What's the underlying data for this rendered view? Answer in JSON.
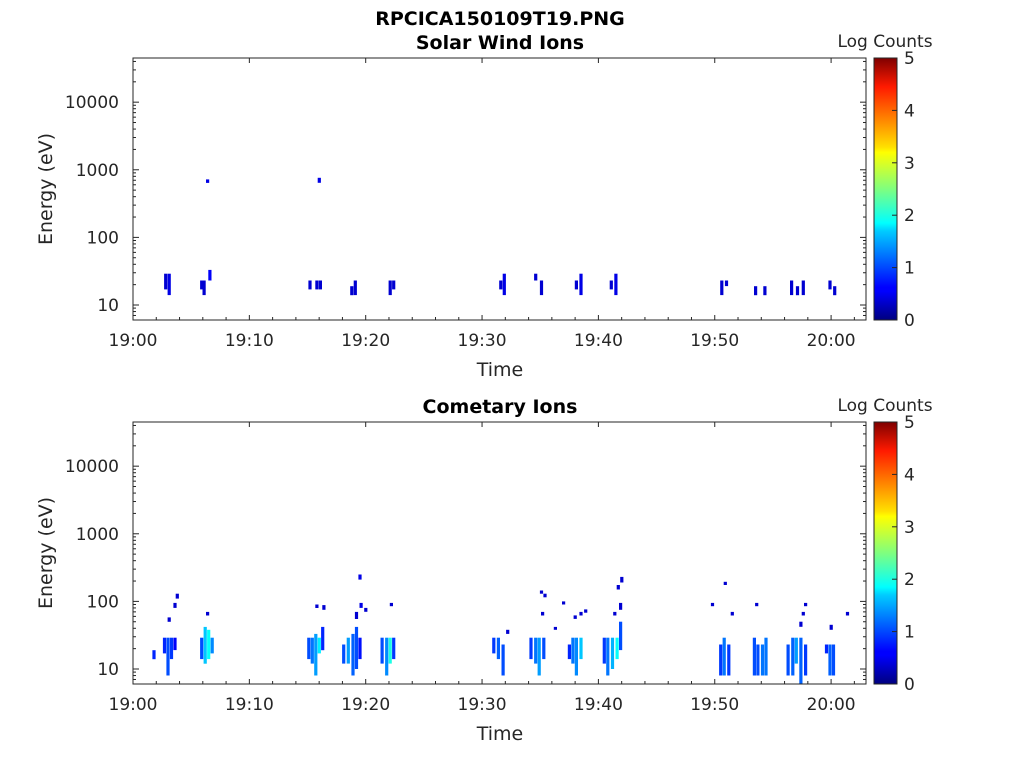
{
  "figure": {
    "title": "RPCICA150109T19.PNG"
  },
  "chart_data": [
    {
      "type": "heatmap",
      "title": "Solar Wind Ions",
      "xlabel": "Time",
      "ylabel": "Energy (eV)",
      "x_ticks": [
        "19:00",
        "19:10",
        "19:20",
        "19:30",
        "19:40",
        "19:50",
        "20:00"
      ],
      "x_range_minutes": [
        0,
        63
      ],
      "y_scale": "log",
      "y_ticks": [
        10,
        100,
        1000,
        10000
      ],
      "y_range": [
        6,
        45000
      ],
      "colorbar": {
        "label": "Log Counts",
        "range": [
          0,
          5
        ],
        "ticks": [
          "0",
          "1",
          "2",
          "3",
          "4",
          "5"
        ],
        "colormap": "jet"
      },
      "cells": [
        {
          "t": 2.8,
          "e0": 17,
          "e1": 29,
          "c": 0.4
        },
        {
          "t": 3.1,
          "e0": 14,
          "e1": 29,
          "c": 0.5
        },
        {
          "t": 5.9,
          "e0": 17,
          "e1": 23,
          "c": 0.4
        },
        {
          "t": 6.1,
          "e0": 14,
          "e1": 23,
          "c": 0.4
        },
        {
          "t": 6.6,
          "e0": 23,
          "e1": 33,
          "c": 0.6
        },
        {
          "t": 6.4,
          "e0": 640,
          "e1": 720,
          "c": 0.5
        },
        {
          "t": 15.2,
          "e0": 17,
          "e1": 23,
          "c": 0.4
        },
        {
          "t": 15.8,
          "e0": 17,
          "e1": 23,
          "c": 0.4
        },
        {
          "t": 16.1,
          "e0": 17,
          "e1": 23,
          "c": 0.4
        },
        {
          "t": 16.0,
          "e0": 640,
          "e1": 760,
          "c": 0.5
        },
        {
          "t": 18.8,
          "e0": 14,
          "e1": 19,
          "c": 0.4
        },
        {
          "t": 19.1,
          "e0": 14,
          "e1": 23,
          "c": 0.4
        },
        {
          "t": 22.1,
          "e0": 14,
          "e1": 23,
          "c": 0.4
        },
        {
          "t": 22.4,
          "e0": 17,
          "e1": 23,
          "c": 0.4
        },
        {
          "t": 31.6,
          "e0": 17,
          "e1": 23,
          "c": 0.4
        },
        {
          "t": 31.9,
          "e0": 14,
          "e1": 29,
          "c": 0.5
        },
        {
          "t": 34.6,
          "e0": 23,
          "e1": 29,
          "c": 0.4
        },
        {
          "t": 35.1,
          "e0": 14,
          "e1": 23,
          "c": 0.4
        },
        {
          "t": 38.1,
          "e0": 17,
          "e1": 23,
          "c": 0.4
        },
        {
          "t": 38.5,
          "e0": 14,
          "e1": 29,
          "c": 0.5
        },
        {
          "t": 41.1,
          "e0": 17,
          "e1": 23,
          "c": 0.4
        },
        {
          "t": 41.5,
          "e0": 14,
          "e1": 29,
          "c": 0.5
        },
        {
          "t": 50.6,
          "e0": 14,
          "e1": 23,
          "c": 0.4
        },
        {
          "t": 51.0,
          "e0": 19,
          "e1": 23,
          "c": 0.4
        },
        {
          "t": 53.5,
          "e0": 14,
          "e1": 19,
          "c": 0.4
        },
        {
          "t": 54.3,
          "e0": 14,
          "e1": 19,
          "c": 0.4
        },
        {
          "t": 56.6,
          "e0": 14,
          "e1": 23,
          "c": 0.4
        },
        {
          "t": 57.1,
          "e0": 14,
          "e1": 19,
          "c": 0.4
        },
        {
          "t": 57.6,
          "e0": 14,
          "e1": 23,
          "c": 0.4
        },
        {
          "t": 59.9,
          "e0": 17,
          "e1": 23,
          "c": 0.4
        },
        {
          "t": 60.3,
          "e0": 14,
          "e1": 19,
          "c": 0.4
        }
      ]
    },
    {
      "type": "heatmap",
      "title": "Cometary Ions",
      "xlabel": "Time",
      "ylabel": "Energy (eV)",
      "x_ticks": [
        "19:00",
        "19:10",
        "19:20",
        "19:30",
        "19:40",
        "19:50",
        "20:00"
      ],
      "x_range_minutes": [
        0,
        63
      ],
      "y_scale": "log",
      "y_ticks": [
        10,
        100,
        1000,
        10000
      ],
      "y_range": [
        6,
        45000
      ],
      "colorbar": {
        "label": "Log Counts",
        "range": [
          0,
          5
        ],
        "ticks": [
          "0",
          "1",
          "2",
          "3",
          "4",
          "5"
        ],
        "colormap": "jet"
      },
      "cells": [
        {
          "t": 1.8,
          "e0": 14,
          "e1": 19,
          "c": 0.8
        },
        {
          "t": 2.7,
          "e0": 17,
          "e1": 29,
          "c": 0.8
        },
        {
          "t": 3.0,
          "e0": 8,
          "e1": 29,
          "c": 1.0
        },
        {
          "t": 3.3,
          "e0": 14,
          "e1": 29,
          "c": 0.9
        },
        {
          "t": 3.6,
          "e0": 19,
          "e1": 29,
          "c": 0.6
        },
        {
          "t": 3.1,
          "e0": 50,
          "e1": 58,
          "c": 0.4
        },
        {
          "t": 3.6,
          "e0": 80,
          "e1": 95,
          "c": 0.4
        },
        {
          "t": 3.8,
          "e0": 110,
          "e1": 130,
          "c": 0.4
        },
        {
          "t": 5.9,
          "e0": 14,
          "e1": 29,
          "c": 1.0
        },
        {
          "t": 6.2,
          "e0": 12,
          "e1": 42,
          "c": 1.6
        },
        {
          "t": 6.5,
          "e0": 14,
          "e1": 38,
          "c": 1.9
        },
        {
          "t": 6.8,
          "e0": 17,
          "e1": 29,
          "c": 1.3
        },
        {
          "t": 6.4,
          "e0": 62,
          "e1": 70,
          "c": 0.4
        },
        {
          "t": 15.1,
          "e0": 14,
          "e1": 29,
          "c": 1.0
        },
        {
          "t": 15.4,
          "e0": 12,
          "e1": 29,
          "c": 1.2
        },
        {
          "t": 15.7,
          "e0": 8,
          "e1": 33,
          "c": 1.4
        },
        {
          "t": 16.0,
          "e0": 17,
          "e1": 29,
          "c": 1.8
        },
        {
          "t": 16.3,
          "e0": 19,
          "e1": 42,
          "c": 0.8
        },
        {
          "t": 15.8,
          "e0": 80,
          "e1": 90,
          "c": 0.4
        },
        {
          "t": 16.4,
          "e0": 75,
          "e1": 88,
          "c": 0.4
        },
        {
          "t": 18.1,
          "e0": 12,
          "e1": 23,
          "c": 1.0
        },
        {
          "t": 18.5,
          "e0": 12,
          "e1": 29,
          "c": 1.4
        },
        {
          "t": 18.9,
          "e0": 8,
          "e1": 33,
          "c": 1.1
        },
        {
          "t": 19.2,
          "e0": 10,
          "e1": 42,
          "c": 1.0
        },
        {
          "t": 19.5,
          "e0": 14,
          "e1": 29,
          "c": 0.7
        },
        {
          "t": 19.2,
          "e0": 55,
          "e1": 70,
          "c": 0.4
        },
        {
          "t": 19.6,
          "e0": 80,
          "e1": 95,
          "c": 0.5
        },
        {
          "t": 19.5,
          "e0": 210,
          "e1": 250,
          "c": 0.5
        },
        {
          "t": 20.0,
          "e0": 70,
          "e1": 80,
          "c": 0.4
        },
        {
          "t": 21.4,
          "e0": 12,
          "e1": 29,
          "c": 1.0
        },
        {
          "t": 21.8,
          "e0": 8,
          "e1": 29,
          "c": 1.3
        },
        {
          "t": 22.1,
          "e0": 12,
          "e1": 29,
          "c": 2.0
        },
        {
          "t": 22.4,
          "e0": 14,
          "e1": 29,
          "c": 0.9
        },
        {
          "t": 22.2,
          "e0": 85,
          "e1": 95,
          "c": 0.4
        },
        {
          "t": 31.0,
          "e0": 17,
          "e1": 29,
          "c": 0.9
        },
        {
          "t": 31.4,
          "e0": 14,
          "e1": 29,
          "c": 1.1
        },
        {
          "t": 31.8,
          "e0": 8,
          "e1": 23,
          "c": 1.0
        },
        {
          "t": 32.2,
          "e0": 33,
          "e1": 38,
          "c": 0.4
        },
        {
          "t": 34.2,
          "e0": 14,
          "e1": 29,
          "c": 0.9
        },
        {
          "t": 34.6,
          "e0": 12,
          "e1": 29,
          "c": 1.2
        },
        {
          "t": 34.9,
          "e0": 8,
          "e1": 29,
          "c": 1.4
        },
        {
          "t": 35.3,
          "e0": 14,
          "e1": 29,
          "c": 1.0
        },
        {
          "t": 35.1,
          "e0": 130,
          "e1": 145,
          "c": 0.4
        },
        {
          "t": 35.4,
          "e0": 115,
          "e1": 130,
          "c": 0.4
        },
        {
          "t": 35.2,
          "e0": 62,
          "e1": 70,
          "c": 0.4
        },
        {
          "t": 36.3,
          "e0": 38,
          "e1": 42,
          "c": 0.4
        },
        {
          "t": 37.0,
          "e0": 90,
          "e1": 100,
          "c": 0.4
        },
        {
          "t": 37.5,
          "e0": 14,
          "e1": 23,
          "c": 0.8
        },
        {
          "t": 37.8,
          "e0": 12,
          "e1": 29,
          "c": 1.2
        },
        {
          "t": 38.1,
          "e0": 8,
          "e1": 29,
          "c": 1.3
        },
        {
          "t": 38.5,
          "e0": 14,
          "e1": 29,
          "c": 1.6
        },
        {
          "t": 38.0,
          "e0": 55,
          "e1": 62,
          "c": 0.4
        },
        {
          "t": 38.5,
          "e0": 62,
          "e1": 70,
          "c": 0.4
        },
        {
          "t": 38.9,
          "e0": 68,
          "e1": 76,
          "c": 0.4
        },
        {
          "t": 40.5,
          "e0": 12,
          "e1": 29,
          "c": 0.9
        },
        {
          "t": 40.8,
          "e0": 8,
          "e1": 29,
          "c": 1.2
        },
        {
          "t": 41.2,
          "e0": 10,
          "e1": 29,
          "c": 1.5
        },
        {
          "t": 41.6,
          "e0": 14,
          "e1": 29,
          "c": 1.9
        },
        {
          "t": 41.9,
          "e0": 19,
          "e1": 50,
          "c": 1.0
        },
        {
          "t": 41.4,
          "e0": 62,
          "e1": 70,
          "c": 0.4
        },
        {
          "t": 41.7,
          "e0": 150,
          "e1": 175,
          "c": 0.4
        },
        {
          "t": 42.0,
          "e0": 190,
          "e1": 230,
          "c": 0.4
        },
        {
          "t": 41.9,
          "e0": 75,
          "e1": 95,
          "c": 0.4
        },
        {
          "t": 49.8,
          "e0": 85,
          "e1": 95,
          "c": 0.4
        },
        {
          "t": 50.9,
          "e0": 175,
          "e1": 195,
          "c": 0.4
        },
        {
          "t": 51.5,
          "e0": 62,
          "e1": 70,
          "c": 0.4
        },
        {
          "t": 50.5,
          "e0": 8,
          "e1": 23,
          "c": 0.9
        },
        {
          "t": 50.8,
          "e0": 8,
          "e1": 29,
          "c": 1.2
        },
        {
          "t": 51.2,
          "e0": 8,
          "e1": 23,
          "c": 0.9
        },
        {
          "t": 53.4,
          "e0": 8,
          "e1": 29,
          "c": 1.0
        },
        {
          "t": 53.7,
          "e0": 8,
          "e1": 23,
          "c": 1.0
        },
        {
          "t": 54.1,
          "e0": 8,
          "e1": 23,
          "c": 1.2
        },
        {
          "t": 54.4,
          "e0": 8,
          "e1": 29,
          "c": 1.2
        },
        {
          "t": 53.6,
          "e0": 85,
          "e1": 95,
          "c": 0.4
        },
        {
          "t": 56.3,
          "e0": 8,
          "e1": 23,
          "c": 1.0
        },
        {
          "t": 56.7,
          "e0": 8,
          "e1": 29,
          "c": 1.1
        },
        {
          "t": 57.0,
          "e0": 12,
          "e1": 29,
          "c": 1.4
        },
        {
          "t": 57.4,
          "e0": 6,
          "e1": 29,
          "c": 1.1
        },
        {
          "t": 57.8,
          "e0": 8,
          "e1": 23,
          "c": 0.9
        },
        {
          "t": 57.4,
          "e0": 42,
          "e1": 50,
          "c": 0.4
        },
        {
          "t": 57.6,
          "e0": 62,
          "e1": 70,
          "c": 0.4
        },
        {
          "t": 57.8,
          "e0": 85,
          "e1": 95,
          "c": 0.4
        },
        {
          "t": 59.6,
          "e0": 17,
          "e1": 23,
          "c": 0.8
        },
        {
          "t": 59.9,
          "e0": 8,
          "e1": 23,
          "c": 1.1
        },
        {
          "t": 60.2,
          "e0": 8,
          "e1": 23,
          "c": 1.0
        },
        {
          "t": 60.0,
          "e0": 38,
          "e1": 45,
          "c": 0.4
        },
        {
          "t": 61.4,
          "e0": 62,
          "e1": 70,
          "c": 0.4
        }
      ]
    }
  ]
}
